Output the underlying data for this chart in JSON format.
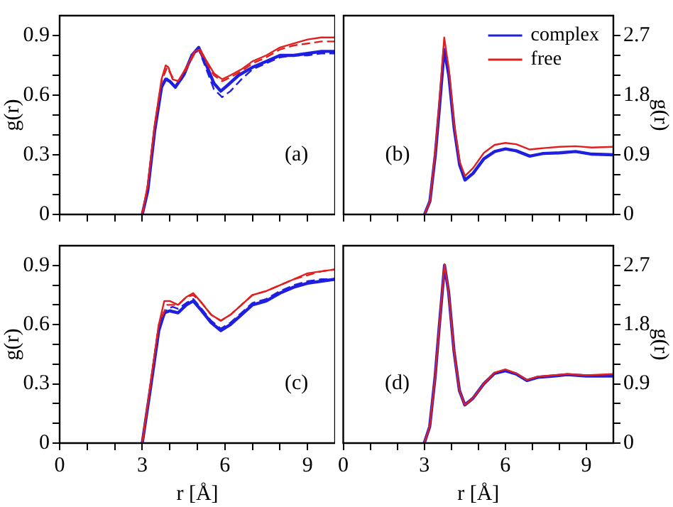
{
  "chart_data": [
    {
      "type": "line",
      "ylabel": "g(r)",
      "annotations": [
        "(a)"
      ],
      "xlim": [
        0,
        10
      ],
      "ylim": [
        0,
        1
      ],
      "tick_labels": "y",
      "legend": false,
      "grid": false,
      "xticks": [
        0,
        {
          "value": 1,
          "label": null
        },
        {
          "value": 2,
          "label": null
        },
        3,
        {
          "value": 4,
          "label": null
        },
        {
          "value": 5,
          "label": null
        },
        6,
        {
          "value": 7,
          "label": null
        },
        {
          "value": 8,
          "label": null
        },
        9
      ],
      "yticks": [
        0,
        {
          "value": 0.1,
          "label": null
        },
        {
          "value": 0.2,
          "label": null
        },
        0.3,
        {
          "value": 0.4,
          "label": null
        },
        {
          "value": 0.5,
          "label": null
        },
        0.6,
        {
          "value": 0.7,
          "label": null
        },
        {
          "value": 0.8,
          "label": null
        },
        0.9
      ],
      "series": [
        {
          "color": "#1f1fe0",
          "line_style": "solid",
          "x": [
            3.0,
            3.2,
            3.45,
            3.7,
            3.85,
            4.0,
            4.2,
            4.5,
            4.8,
            5.05,
            5.3,
            5.6,
            5.85,
            6.1,
            6.5,
            7.0,
            7.5,
            8.0,
            8.5,
            9.0,
            9.5,
            10
          ],
          "values": [
            0,
            0.12,
            0.42,
            0.64,
            0.68,
            0.67,
            0.64,
            0.7,
            0.8,
            0.84,
            0.76,
            0.66,
            0.62,
            0.65,
            0.7,
            0.74,
            0.77,
            0.8,
            0.8,
            0.81,
            0.82,
            0.82
          ]
        },
        {
          "color": "#1f1fe0",
          "line_style": "dashed",
          "x": [
            3.0,
            3.2,
            3.45,
            3.7,
            3.85,
            4.0,
            4.2,
            4.5,
            4.8,
            5.05,
            5.3,
            5.6,
            5.9,
            6.2,
            6.6,
            7.0,
            7.5,
            8.0,
            8.5,
            9.0,
            9.5,
            10
          ],
          "values": [
            0,
            0.12,
            0.42,
            0.64,
            0.69,
            0.67,
            0.65,
            0.69,
            0.79,
            0.83,
            0.74,
            0.63,
            0.59,
            0.62,
            0.68,
            0.73,
            0.76,
            0.79,
            0.8,
            0.8,
            0.81,
            0.81
          ]
        },
        {
          "color": "#e01f1f",
          "line_style": "solid",
          "x": [
            3.0,
            3.2,
            3.45,
            3.7,
            3.85,
            3.95,
            4.1,
            4.3,
            4.6,
            4.9,
            5.1,
            5.3,
            5.6,
            5.9,
            6.2,
            6.6,
            7.0,
            7.5,
            8.0,
            8.5,
            9.0,
            9.5,
            10
          ],
          "values": [
            0,
            0.15,
            0.45,
            0.68,
            0.75,
            0.74,
            0.68,
            0.67,
            0.74,
            0.82,
            0.83,
            0.78,
            0.71,
            0.68,
            0.7,
            0.73,
            0.77,
            0.8,
            0.84,
            0.86,
            0.88,
            0.89,
            0.89
          ]
        },
        {
          "color": "#e01f1f",
          "line_style": "dashed",
          "x": [
            3.0,
            3.2,
            3.45,
            3.7,
            3.9,
            4.1,
            4.3,
            4.6,
            4.9,
            5.1,
            5.3,
            5.6,
            5.9,
            6.2,
            6.6,
            7.0,
            7.5,
            8.0,
            8.5,
            9.0,
            9.5,
            10
          ],
          "values": [
            0,
            0.14,
            0.44,
            0.67,
            0.74,
            0.69,
            0.67,
            0.73,
            0.81,
            0.82,
            0.77,
            0.7,
            0.67,
            0.69,
            0.72,
            0.76,
            0.79,
            0.83,
            0.85,
            0.86,
            0.87,
            0.87
          ]
        }
      ]
    },
    {
      "type": "line",
      "ylabel": "g(r)",
      "annotations": [
        "(b)"
      ],
      "xlim": [
        0,
        10
      ],
      "ylim": [
        0,
        3
      ],
      "tick_labels": "y",
      "legend": "top right",
      "grid": false,
      "xticks": [
        0,
        {
          "value": 1,
          "label": null
        },
        {
          "value": 2,
          "label": null
        },
        3,
        {
          "value": 4,
          "label": null
        },
        {
          "value": 5,
          "label": null
        },
        6,
        {
          "value": 7,
          "label": null
        },
        {
          "value": 8,
          "label": null
        },
        9
      ],
      "yticks": [
        0,
        {
          "value": 0.3,
          "label": null
        },
        {
          "value": 0.6,
          "label": null
        },
        0.9,
        {
          "value": 1.2,
          "label": null
        },
        {
          "value": 1.5,
          "label": null
        },
        1.8,
        {
          "value": 2.1,
          "label": null
        },
        {
          "value": 2.4,
          "label": null
        },
        2.7
      ],
      "series": [
        {
          "name": "complex",
          "color": "#1f1fe0",
          "line_style": "solid",
          "x": [
            3.0,
            3.2,
            3.4,
            3.55,
            3.73,
            3.9,
            4.1,
            4.3,
            4.5,
            4.8,
            5.2,
            5.6,
            6.0,
            6.4,
            6.9,
            7.4,
            8.0,
            8.6,
            9.2,
            10
          ],
          "values": [
            0,
            0.2,
            0.9,
            1.6,
            2.49,
            2.1,
            1.3,
            0.75,
            0.52,
            0.62,
            0.84,
            0.95,
            0.99,
            0.96,
            0.88,
            0.92,
            0.93,
            0.95,
            0.91,
            0.9
          ]
        },
        {
          "name": "free",
          "color": "#e01f1f",
          "line_style": "solid",
          "x": [
            3.0,
            3.2,
            3.4,
            3.55,
            3.73,
            3.9,
            4.1,
            4.3,
            4.5,
            4.8,
            5.2,
            5.6,
            6.0,
            6.4,
            6.9,
            7.4,
            8.0,
            8.6,
            9.2,
            10
          ],
          "values": [
            0,
            0.2,
            0.95,
            1.7,
            2.67,
            2.2,
            1.35,
            0.8,
            0.58,
            0.7,
            0.93,
            1.05,
            1.08,
            1.06,
            0.98,
            1.0,
            1.02,
            1.03,
            1.01,
            1.02
          ]
        }
      ]
    },
    {
      "type": "line",
      "ylabel": "g(r)",
      "xlabel": "r [Å]",
      "annotations": [
        "(c)"
      ],
      "xlim": [
        0,
        10
      ],
      "ylim": [
        0,
        1
      ],
      "legend": false,
      "grid": false,
      "xticks": [
        0,
        {
          "value": 1,
          "label": null
        },
        {
          "value": 2,
          "label": null
        },
        3,
        {
          "value": 4,
          "label": null
        },
        {
          "value": 5,
          "label": null
        },
        6,
        {
          "value": 7,
          "label": null
        },
        {
          "value": 8,
          "label": null
        },
        9
      ],
      "yticks": [
        0,
        {
          "value": 0.1,
          "label": null
        },
        {
          "value": 0.2,
          "label": null
        },
        0.3,
        {
          "value": 0.4,
          "label": null
        },
        {
          "value": 0.5,
          "label": null
        },
        0.6,
        {
          "value": 0.7,
          "label": null
        },
        {
          "value": 0.8,
          "label": null
        },
        0.9
      ],
      "series": [
        {
          "color": "#1f1fe0",
          "line_style": "solid",
          "x": [
            3.0,
            3.3,
            3.6,
            3.8,
            4.0,
            4.3,
            4.6,
            4.85,
            5.1,
            5.5,
            5.85,
            6.2,
            6.6,
            7.0,
            7.5,
            8.0,
            8.5,
            9.0,
            9.5,
            10
          ],
          "values": [
            0,
            0.28,
            0.57,
            0.66,
            0.67,
            0.66,
            0.7,
            0.72,
            0.68,
            0.61,
            0.57,
            0.6,
            0.65,
            0.7,
            0.72,
            0.76,
            0.79,
            0.81,
            0.82,
            0.83
          ]
        },
        {
          "color": "#1f1fe0",
          "line_style": "dashed",
          "x": [
            3.0,
            3.3,
            3.6,
            3.9,
            4.1,
            4.3,
            4.6,
            4.85,
            5.1,
            5.5,
            5.85,
            6.2,
            6.6,
            7.0,
            7.5,
            8.0,
            8.5,
            9.0,
            9.5,
            10
          ],
          "values": [
            0,
            0.28,
            0.58,
            0.68,
            0.69,
            0.68,
            0.71,
            0.73,
            0.69,
            0.62,
            0.58,
            0.61,
            0.66,
            0.71,
            0.73,
            0.77,
            0.8,
            0.82,
            0.83,
            0.83
          ]
        },
        {
          "color": "#e01f1f",
          "line_style": "solid",
          "x": [
            3.0,
            3.3,
            3.6,
            3.8,
            4.0,
            4.3,
            4.6,
            4.85,
            5.1,
            5.5,
            5.85,
            6.2,
            6.6,
            7.0,
            7.5,
            8.0,
            8.5,
            9.0,
            9.5,
            10
          ],
          "values": [
            0,
            0.3,
            0.6,
            0.72,
            0.72,
            0.7,
            0.74,
            0.76,
            0.72,
            0.65,
            0.62,
            0.65,
            0.7,
            0.75,
            0.77,
            0.8,
            0.83,
            0.86,
            0.87,
            0.88
          ]
        },
        {
          "color": "#e01f1f",
          "line_style": "dashed",
          "x": [
            3.0,
            3.3,
            3.6,
            3.9,
            4.1,
            4.3,
            4.6,
            4.85,
            5.1,
            5.5,
            5.85,
            6.2,
            6.6,
            7.0,
            7.5,
            8.0,
            8.5,
            9.0,
            9.5,
            10
          ],
          "values": [
            0,
            0.3,
            0.6,
            0.7,
            0.7,
            0.7,
            0.74,
            0.75,
            0.72,
            0.65,
            0.62,
            0.65,
            0.7,
            0.75,
            0.77,
            0.8,
            0.83,
            0.85,
            0.87,
            0.88
          ]
        }
      ]
    },
    {
      "type": "line",
      "ylabel": "g(r)",
      "xlabel": "r [Å]",
      "annotations": [
        "(d)"
      ],
      "xlim": [
        0,
        10
      ],
      "ylim": [
        0,
        3
      ],
      "legend": false,
      "grid": false,
      "xticks": [
        0,
        {
          "value": 1,
          "label": null
        },
        {
          "value": 2,
          "label": null
        },
        3,
        {
          "value": 4,
          "label": null
        },
        {
          "value": 5,
          "label": null
        },
        6,
        {
          "value": 7,
          "label": null
        },
        {
          "value": 8,
          "label": null
        },
        9
      ],
      "yticks": [
        0,
        {
          "value": 0.3,
          "label": null
        },
        {
          "value": 0.6,
          "label": null
        },
        0.9,
        {
          "value": 1.2,
          "label": null
        },
        {
          "value": 1.5,
          "label": null
        },
        1.8,
        {
          "value": 2.1,
          "label": null
        },
        {
          "value": 2.4,
          "label": null
        },
        2.7
      ],
      "series": [
        {
          "color": "#1f1fe0",
          "line_style": "solid",
          "x": [
            3.0,
            3.2,
            3.4,
            3.55,
            3.75,
            3.9,
            4.1,
            4.3,
            4.5,
            4.8,
            5.2,
            5.6,
            6.0,
            6.4,
            6.8,
            7.2,
            7.8,
            8.3,
            9.0,
            10
          ],
          "values": [
            0,
            0.25,
            1.0,
            1.75,
            2.7,
            2.3,
            1.4,
            0.8,
            0.58,
            0.68,
            0.9,
            1.06,
            1.1,
            1.05,
            0.95,
            1.0,
            1.02,
            1.04,
            1.02,
            1.02
          ]
        },
        {
          "color": "#e01f1f",
          "line_style": "solid",
          "x": [
            3.0,
            3.2,
            3.4,
            3.55,
            3.75,
            3.9,
            4.1,
            4.3,
            4.5,
            4.8,
            5.2,
            5.6,
            6.0,
            6.4,
            6.8,
            7.2,
            7.8,
            8.3,
            9.0,
            10
          ],
          "values": [
            0,
            0.25,
            1.0,
            1.75,
            2.72,
            2.3,
            1.4,
            0.8,
            0.58,
            0.68,
            0.9,
            1.07,
            1.12,
            1.06,
            0.96,
            1.01,
            1.03,
            1.05,
            1.03,
            1.05
          ]
        }
      ]
    }
  ]
}
